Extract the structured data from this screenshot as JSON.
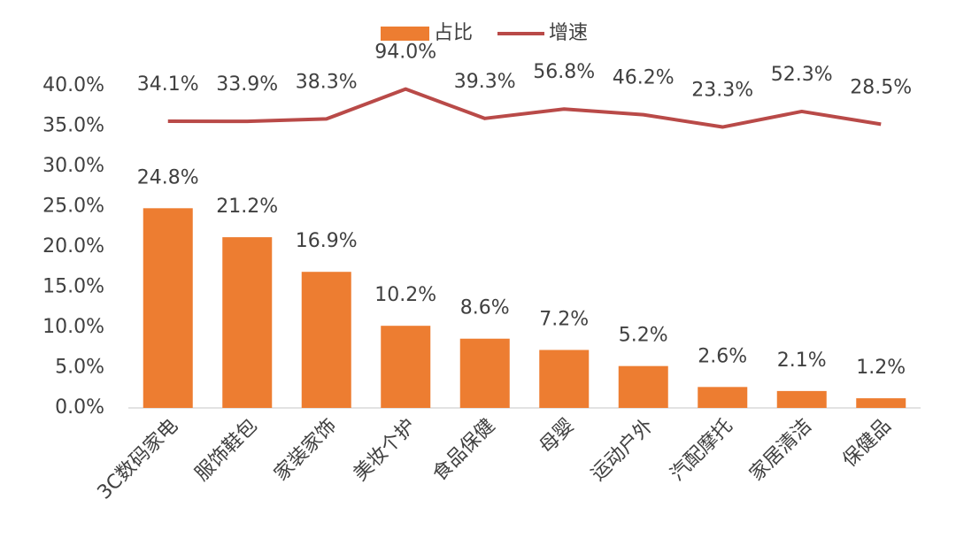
{
  "chart_data": {
    "type": "bar_line",
    "categories": [
      "3C数码家电",
      "服饰鞋包",
      "家装家饰",
      "美妆个护",
      "食品保健",
      "母婴",
      "运动户外",
      "汽配摩托",
      "家居清洁",
      "保健品"
    ],
    "series": [
      {
        "name": "占比",
        "type": "bar",
        "color": "#ed7d31",
        "values": [
          24.8,
          21.2,
          16.9,
          10.2,
          8.6,
          7.2,
          5.2,
          2.6,
          2.1,
          1.2
        ],
        "value_labels": [
          "24.8%",
          "21.2%",
          "16.9%",
          "10.2%",
          "8.6%",
          "7.2%",
          "5.2%",
          "2.6%",
          "2.1%",
          "1.2%"
        ]
      },
      {
        "name": "增速",
        "type": "line",
        "axis": "y2",
        "color": "#b94a48",
        "values": [
          34.1,
          33.9,
          38.3,
          94.0,
          39.3,
          56.8,
          46.2,
          23.3,
          52.3,
          28.5
        ],
        "value_labels": [
          "34.1%",
          "33.9%",
          "38.3%",
          "94.0%",
          "39.3%",
          "56.8%",
          "46.2%",
          "23.3%",
          "52.3%",
          "28.5%"
        ]
      }
    ],
    "ylim": [
      0,
      40
    ],
    "yticks": [
      {
        "value": 0,
        "label": "0.0%"
      },
      {
        "value": 5,
        "label": "5.0%"
      },
      {
        "value": 10,
        "label": "10.0%"
      },
      {
        "value": 15,
        "label": "15.0%"
      },
      {
        "value": 20,
        "label": "20.0%"
      },
      {
        "value": 25,
        "label": "25.0%"
      },
      {
        "value": 30,
        "label": "30.0%"
      },
      {
        "value": 35,
        "label": "35.0%"
      },
      {
        "value": 40,
        "label": "40.0%"
      }
    ],
    "y2lim": [
      -500,
      100
    ],
    "legend": "top"
  }
}
